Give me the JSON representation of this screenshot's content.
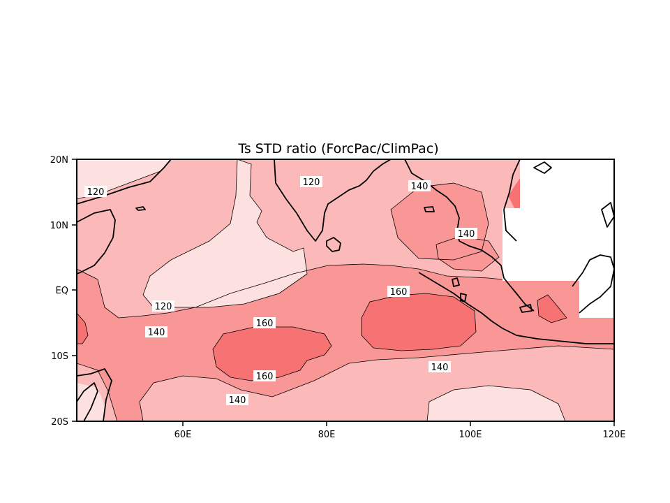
{
  "title": "Ts STD ratio (ForcPac/ClimPac)",
  "axes": {
    "x_ticks": [
      "60E",
      "80E",
      "100E",
      "120E"
    ],
    "y_ticks": [
      "20N",
      "10N",
      "EQ",
      "10S",
      "20S"
    ]
  },
  "colors": {
    "level_lt_120": "#fde0e0",
    "level_120_140": "#fbb9b9",
    "level_140_160": "#f99797",
    "level_gt_160": "#f77272",
    "land_mask": "#ffffff",
    "contour_line": "#000000"
  },
  "contour_labels": [
    "120",
    "120",
    "140",
    "140",
    "120",
    "160",
    "140",
    "160",
    "160",
    "140",
    "140"
  ]
}
